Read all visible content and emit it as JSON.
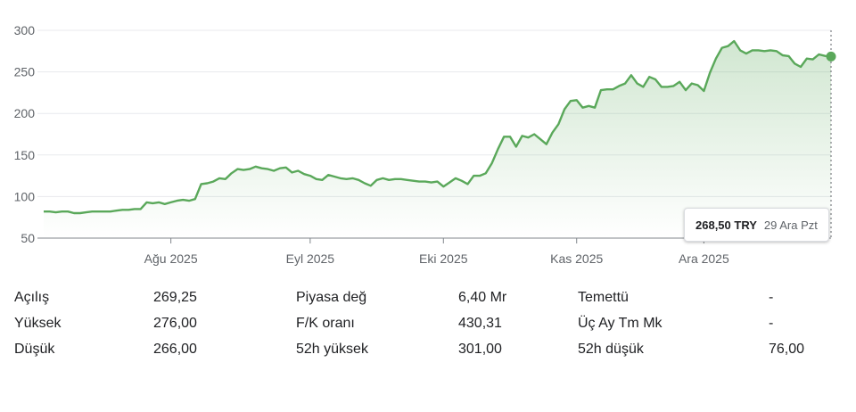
{
  "chart_data": {
    "type": "area",
    "y_ticks": [
      50,
      100,
      150,
      200,
      250,
      300
    ],
    "ylim": [
      50,
      300
    ],
    "x_ticks": [
      "Ağu 2025",
      "Eyl 2025",
      "Eki 2025",
      "Kas 2025",
      "Ara 2025"
    ],
    "x_tick_index": [
      21,
      44,
      66,
      88,
      109
    ],
    "line_color": "#5aa85a",
    "values": [
      82,
      82,
      81,
      82,
      82,
      80,
      80,
      81,
      82,
      82,
      82,
      82,
      83,
      84,
      84,
      85,
      85,
      93,
      92,
      93,
      91,
      93,
      95,
      96,
      95,
      97,
      115,
      116,
      118,
      122,
      121,
      128,
      133,
      132,
      133,
      136,
      134,
      133,
      131,
      134,
      135,
      129,
      131,
      127,
      125,
      121,
      120,
      126,
      124,
      122,
      121,
      122,
      120,
      116,
      113,
      120,
      122,
      120,
      121,
      121,
      120,
      119,
      118,
      118,
      117,
      118,
      112,
      117,
      122,
      119,
      115,
      125,
      125,
      128,
      140,
      157,
      172,
      172,
      160,
      173,
      171,
      175,
      169,
      163,
      177,
      187,
      205,
      215,
      216,
      207,
      209,
      207,
      228,
      229,
      229,
      233,
      236,
      246,
      236,
      232,
      244,
      241,
      232,
      232,
      233,
      238,
      228,
      236,
      234,
      227,
      249,
      266,
      279,
      281,
      287,
      276,
      272,
      276,
      276,
      275,
      276,
      275,
      270,
      269,
      260,
      256,
      266,
      265,
      271,
      269.25,
      268.5
    ],
    "last_point": {
      "price": "268,50 TRY",
      "date": "29 Ara Pzt"
    }
  },
  "stats": {
    "rows": [
      [
        {
          "label": "Açılış",
          "value": "269,25"
        },
        {
          "label": "Piyasa değ",
          "value": "6,40 Mr"
        },
        {
          "label": "Temettü",
          "value": "-"
        }
      ],
      [
        {
          "label": "Yüksek",
          "value": "276,00"
        },
        {
          "label": "F/K oranı",
          "value": "430,31"
        },
        {
          "label": "Üç Ay Tm Mk",
          "value": "-"
        }
      ],
      [
        {
          "label": "Düşük",
          "value": "266,00"
        },
        {
          "label": "52h yüksek",
          "value": "301,00"
        },
        {
          "label": "52h düşük",
          "value": "76,00"
        }
      ]
    ]
  }
}
